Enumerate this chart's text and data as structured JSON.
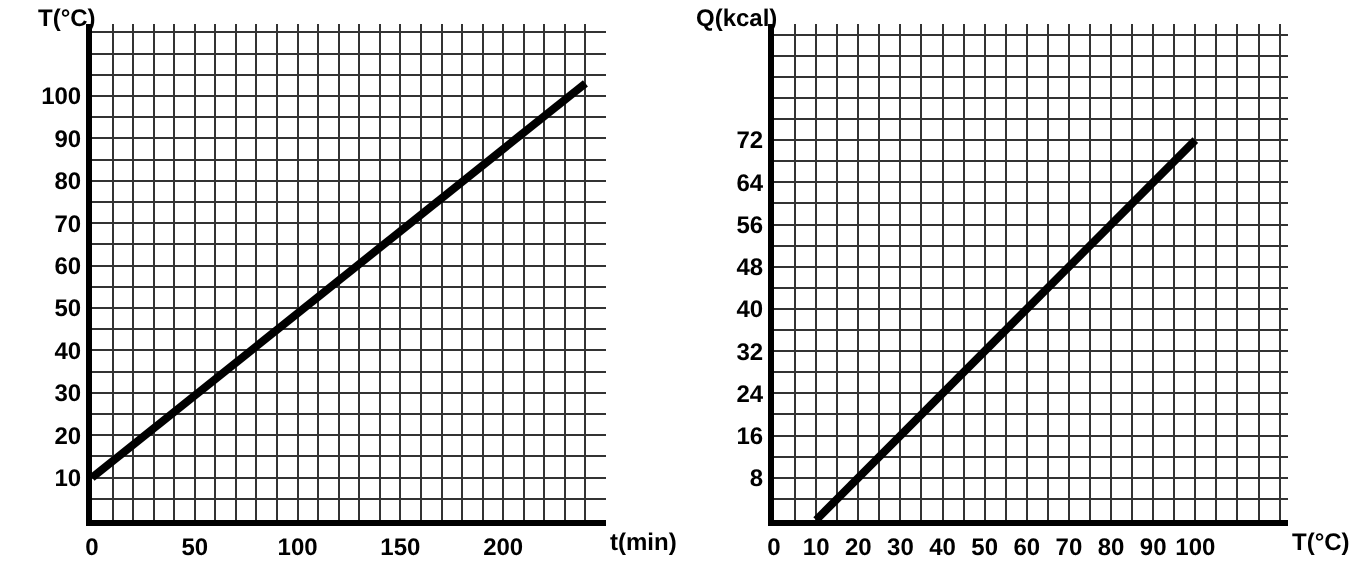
{
  "chart_data": [
    {
      "type": "line",
      "xlabel": "t(min)",
      "ylabel": "T(°C)",
      "x": [
        0,
        240
      ],
      "series": [
        {
          "color": "#000000",
          "values": [
            10,
            103
          ]
        }
      ],
      "xlim": [
        0,
        250
      ],
      "ylim": [
        0,
        117
      ],
      "xticks": [
        0,
        {
          "value": 10,
          "label": null
        },
        {
          "value": 20,
          "label": null
        },
        {
          "value": 30,
          "label": null
        },
        {
          "value": 40,
          "label": null
        },
        50,
        {
          "value": 60,
          "label": null
        },
        {
          "value": 70,
          "label": null
        },
        {
          "value": 80,
          "label": null
        },
        {
          "value": 90,
          "label": null
        },
        100,
        {
          "value": 110,
          "label": null
        },
        {
          "value": 120,
          "label": null
        },
        {
          "value": 130,
          "label": null
        },
        {
          "value": 140,
          "label": null
        },
        150,
        {
          "value": 160,
          "label": null
        },
        {
          "value": 170,
          "label": null
        },
        {
          "value": 180,
          "label": null
        },
        {
          "value": 190,
          "label": null
        },
        200,
        {
          "value": 210,
          "label": null
        },
        {
          "value": 220,
          "label": null
        },
        {
          "value": 230,
          "label": null
        },
        {
          "value": 240,
          "label": null
        }
      ],
      "yticks": [
        {
          "value": 5,
          "label": null
        },
        10,
        {
          "value": 15,
          "label": null
        },
        20,
        {
          "value": 25,
          "label": null
        },
        30,
        {
          "value": 35,
          "label": null
        },
        40,
        {
          "value": 45,
          "label": null
        },
        50,
        {
          "value": 55,
          "label": null
        },
        60,
        {
          "value": 65,
          "label": null
        },
        70,
        {
          "value": 75,
          "label": null
        },
        80,
        {
          "value": 85,
          "label": null
        },
        90,
        {
          "value": 95,
          "label": null
        },
        100,
        {
          "value": 105,
          "label": null
        },
        {
          "value": 110,
          "label": null
        },
        {
          "value": 115,
          "label": null
        }
      ],
      "grid": true,
      "marker": "none",
      "line_style": "solid"
    },
    {
      "type": "line",
      "xlabel": "T(°C)",
      "ylabel": "Q(kcal)",
      "x": [
        10,
        100
      ],
      "series": [
        {
          "color": "#000000",
          "values": [
            0,
            72
          ]
        }
      ],
      "xlim": [
        0,
        122
      ],
      "ylim": [
        0,
        94
      ],
      "xticks": [
        0,
        {
          "value": 5,
          "label": null
        },
        10,
        {
          "value": 15,
          "label": null
        },
        20,
        {
          "value": 25,
          "label": null
        },
        30,
        {
          "value": 35,
          "label": null
        },
        40,
        {
          "value": 45,
          "label": null
        },
        50,
        {
          "value": 55,
          "label": null
        },
        60,
        {
          "value": 65,
          "label": null
        },
        70,
        {
          "value": 75,
          "label": null
        },
        80,
        {
          "value": 85,
          "label": null
        },
        90,
        {
          "value": 95,
          "label": null
        },
        100,
        {
          "value": 105,
          "label": null
        },
        {
          "value": 110,
          "label": null
        },
        {
          "value": 115,
          "label": null
        },
        {
          "value": 120,
          "label": null
        }
      ],
      "yticks": [
        {
          "value": 4,
          "label": null
        },
        8,
        {
          "value": 12,
          "label": null
        },
        16,
        {
          "value": 20,
          "label": null
        },
        24,
        {
          "value": 28,
          "label": null
        },
        32,
        {
          "value": 36,
          "label": null
        },
        40,
        {
          "value": 44,
          "label": null
        },
        48,
        {
          "value": 52,
          "label": null
        },
        56,
        {
          "value": 60,
          "label": null
        },
        64,
        {
          "value": 68,
          "label": null
        },
        72,
        {
          "value": 76,
          "label": null
        },
        {
          "value": 80,
          "label": null
        },
        {
          "value": 84,
          "label": null
        },
        {
          "value": 88,
          "label": null
        },
        {
          "value": 92,
          "label": null
        }
      ],
      "grid": true,
      "marker": "none",
      "line_style": "solid"
    }
  ]
}
